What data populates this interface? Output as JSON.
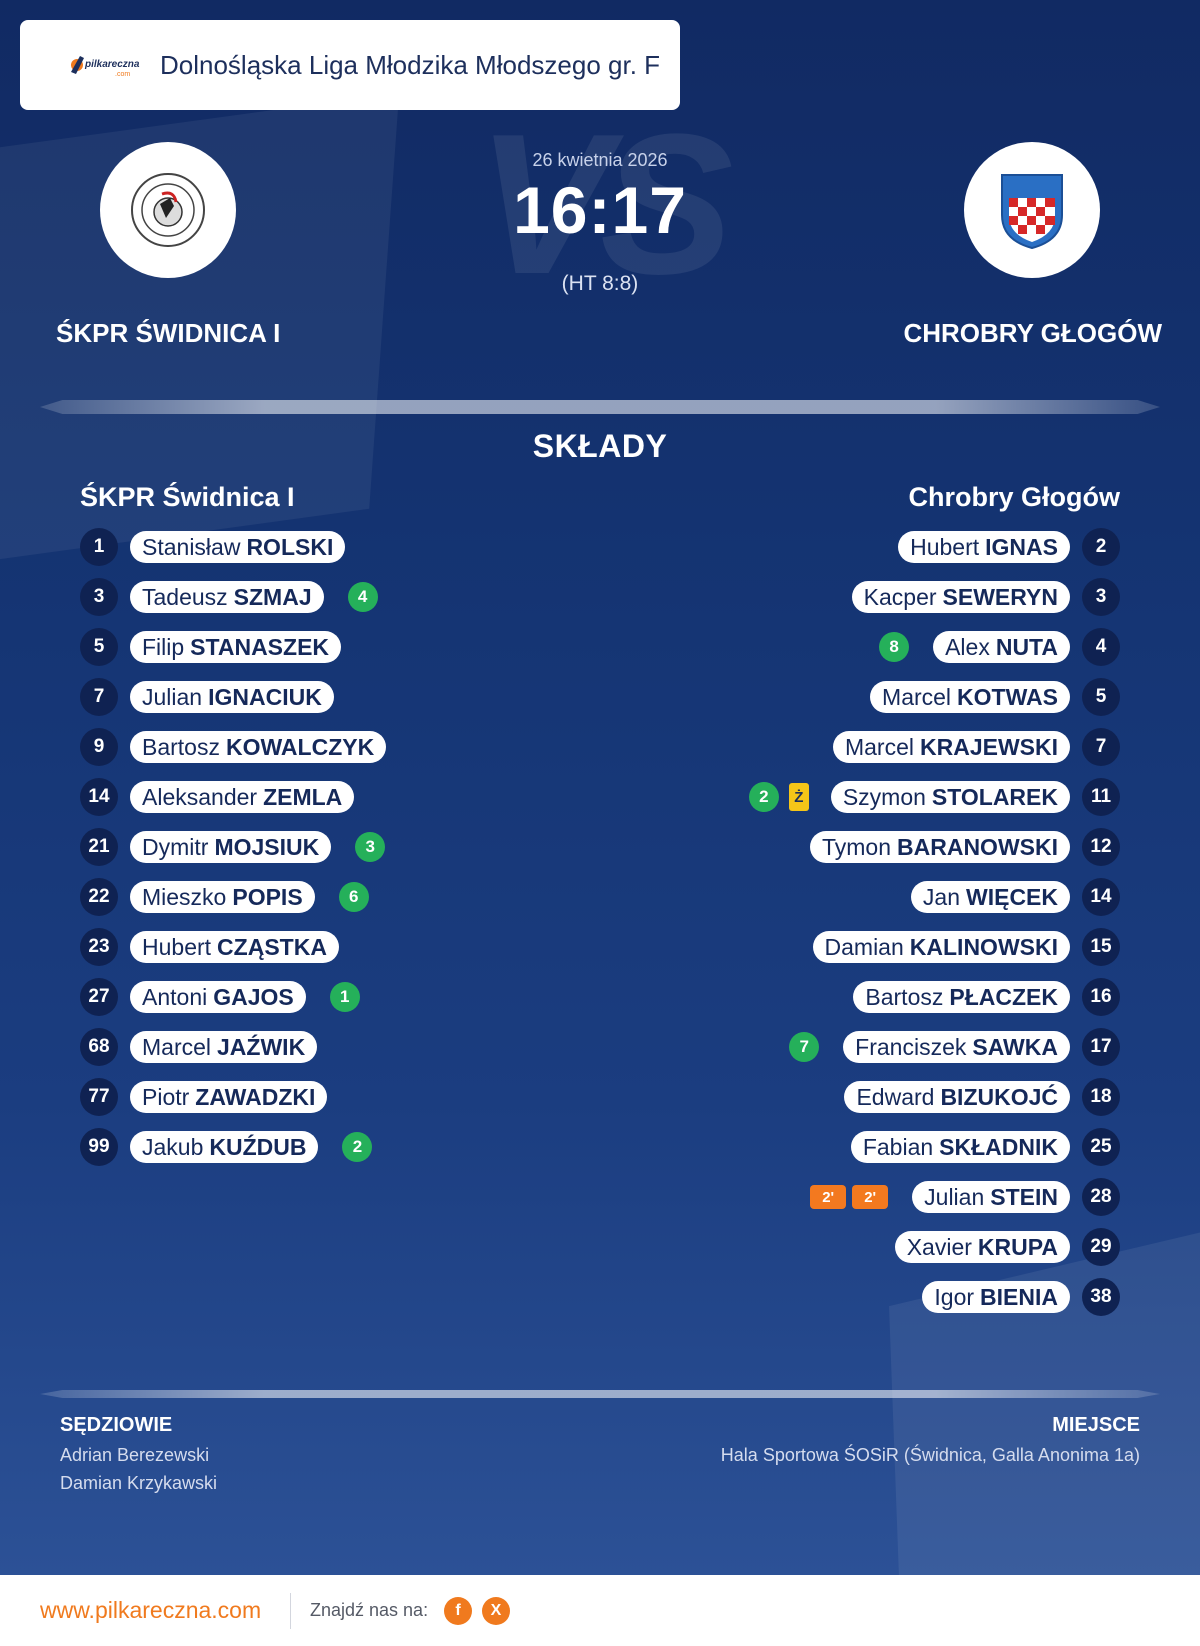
{
  "header": {
    "brand_text": "pilkareczna",
    "brand_sub": ".com",
    "league": "Dolnośląska Liga Młodzika Młodszego gr. F"
  },
  "match": {
    "date": "26 kwietnia 2026",
    "score": "16:17",
    "halftime": "(HT 8:8)",
    "vs_watermark": "VS"
  },
  "home": {
    "name_upper": "ŚKPR ŚWIDNICA I",
    "name": "ŚKPR Świdnica I",
    "players": [
      {
        "num": "1",
        "first": "Stanisław",
        "last": "ROLSKI",
        "goals": null
      },
      {
        "num": "3",
        "first": "Tadeusz",
        "last": "SZMAJ",
        "goals": "4"
      },
      {
        "num": "5",
        "first": "Filip",
        "last": "STANASZEK",
        "goals": null
      },
      {
        "num": "7",
        "first": "Julian",
        "last": "IGNACIUK",
        "goals": null
      },
      {
        "num": "9",
        "first": "Bartosz",
        "last": "KOWALCZYK",
        "goals": null
      },
      {
        "num": "14",
        "first": "Aleksander",
        "last": "ZEMLA",
        "goals": null
      },
      {
        "num": "21",
        "first": "Dymitr",
        "last": "MOJSIUK",
        "goals": "3"
      },
      {
        "num": "22",
        "first": "Mieszko",
        "last": "POPIS",
        "goals": "6"
      },
      {
        "num": "23",
        "first": "Hubert",
        "last": "CZĄSTKA",
        "goals": null
      },
      {
        "num": "27",
        "first": "Antoni",
        "last": "GAJOS",
        "goals": "1"
      },
      {
        "num": "68",
        "first": "Marcel",
        "last": "JAŹWIK",
        "goals": null
      },
      {
        "num": "77",
        "first": "Piotr",
        "last": "ZAWADZKI",
        "goals": null
      },
      {
        "num": "99",
        "first": "Jakub",
        "last": "KUŹDUB",
        "goals": "2"
      }
    ]
  },
  "away": {
    "name_upper": "CHROBRY GŁOGÓW",
    "name": "Chrobry Głogów",
    "players": [
      {
        "num": "2",
        "first": "Hubert",
        "last": "IGNAS",
        "goals": null
      },
      {
        "num": "3",
        "first": "Kacper",
        "last": "SEWERYN",
        "goals": null
      },
      {
        "num": "4",
        "first": "Alex",
        "last": "NUTA",
        "goals": "8"
      },
      {
        "num": "5",
        "first": "Marcel",
        "last": "KOTWAS",
        "goals": null
      },
      {
        "num": "7",
        "first": "Marcel",
        "last": "KRAJEWSKI",
        "goals": null
      },
      {
        "num": "11",
        "first": "Szymon",
        "last": "STOLAREK",
        "goals": "2",
        "card": "Ż"
      },
      {
        "num": "12",
        "first": "Tymon",
        "last": "BARANOWSKI",
        "goals": null
      },
      {
        "num": "14",
        "first": "Jan",
        "last": "WIĘCEK",
        "goals": null
      },
      {
        "num": "15",
        "first": "Damian",
        "last": "KALINOWSKI",
        "goals": null
      },
      {
        "num": "16",
        "first": "Bartosz",
        "last": "PŁACZEK",
        "goals": null
      },
      {
        "num": "17",
        "first": "Franciszek",
        "last": "SAWKA",
        "goals": "7"
      },
      {
        "num": "18",
        "first": "Edward",
        "last": "BIZUKOJĆ",
        "goals": null
      },
      {
        "num": "25",
        "first": "Fabian",
        "last": "SKŁADNIK",
        "goals": null
      },
      {
        "num": "28",
        "first": "Julian",
        "last": "STEIN",
        "goals": null,
        "suspensions": [
          "2'",
          "2'"
        ]
      },
      {
        "num": "29",
        "first": "Xavier",
        "last": "KRUPA",
        "goals": null
      },
      {
        "num": "38",
        "first": "Igor",
        "last": "BIENIA",
        "goals": null
      }
    ]
  },
  "lineups_title": "SKŁADY",
  "officials": {
    "title": "SĘDZIOWIE",
    "names": [
      "Adrian Berezewski",
      "Damian Krzykawski"
    ]
  },
  "venue": {
    "title": "MIEJSCE",
    "name": "Hala Sportowa ŚOSiR (Świdnica, Galla Anonima 1a)"
  },
  "footer": {
    "url": "www.pilkareczna.com",
    "find_us": "Znajdź nas na:",
    "facebook_label": "f",
    "x_label": "X"
  },
  "colors": {
    "background": "#153574",
    "accent": "#f07a1e",
    "goal_badge": "#25b05a",
    "yellow_card": "#f5c518",
    "suspension": "#f3791f"
  }
}
